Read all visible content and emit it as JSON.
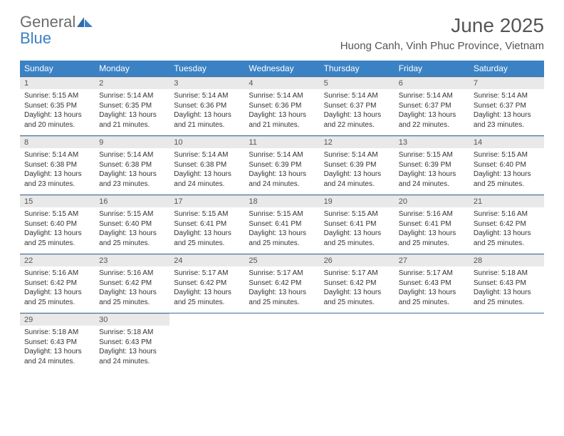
{
  "logo": {
    "word1": "General",
    "word2": "Blue"
  },
  "title": "June 2025",
  "subtitle": "Huong Canh, Vinh Phuc Province, Vietnam",
  "day_headers": [
    "Sunday",
    "Monday",
    "Tuesday",
    "Wednesday",
    "Thursday",
    "Friday",
    "Saturday"
  ],
  "colors": {
    "header_bg": "#3b82c4",
    "header_fg": "#ffffff",
    "daynum_bg": "#e9e9e9",
    "row_border": "#3b6fa0",
    "title_color": "#555555",
    "logo_gray": "#6b6b6b",
    "logo_blue": "#3b7fc4"
  },
  "labels": {
    "sunrise": "Sunrise:",
    "sunset": "Sunset:",
    "daylight": "Daylight:"
  },
  "days": [
    {
      "n": "1",
      "sunrise": "5:15 AM",
      "sunset": "6:35 PM",
      "daylight": "13 hours and 20 minutes."
    },
    {
      "n": "2",
      "sunrise": "5:14 AM",
      "sunset": "6:35 PM",
      "daylight": "13 hours and 21 minutes."
    },
    {
      "n": "3",
      "sunrise": "5:14 AM",
      "sunset": "6:36 PM",
      "daylight": "13 hours and 21 minutes."
    },
    {
      "n": "4",
      "sunrise": "5:14 AM",
      "sunset": "6:36 PM",
      "daylight": "13 hours and 21 minutes."
    },
    {
      "n": "5",
      "sunrise": "5:14 AM",
      "sunset": "6:37 PM",
      "daylight": "13 hours and 22 minutes."
    },
    {
      "n": "6",
      "sunrise": "5:14 AM",
      "sunset": "6:37 PM",
      "daylight": "13 hours and 22 minutes."
    },
    {
      "n": "7",
      "sunrise": "5:14 AM",
      "sunset": "6:37 PM",
      "daylight": "13 hours and 23 minutes."
    },
    {
      "n": "8",
      "sunrise": "5:14 AM",
      "sunset": "6:38 PM",
      "daylight": "13 hours and 23 minutes."
    },
    {
      "n": "9",
      "sunrise": "5:14 AM",
      "sunset": "6:38 PM",
      "daylight": "13 hours and 23 minutes."
    },
    {
      "n": "10",
      "sunrise": "5:14 AM",
      "sunset": "6:38 PM",
      "daylight": "13 hours and 24 minutes."
    },
    {
      "n": "11",
      "sunrise": "5:14 AM",
      "sunset": "6:39 PM",
      "daylight": "13 hours and 24 minutes."
    },
    {
      "n": "12",
      "sunrise": "5:14 AM",
      "sunset": "6:39 PM",
      "daylight": "13 hours and 24 minutes."
    },
    {
      "n": "13",
      "sunrise": "5:15 AM",
      "sunset": "6:39 PM",
      "daylight": "13 hours and 24 minutes."
    },
    {
      "n": "14",
      "sunrise": "5:15 AM",
      "sunset": "6:40 PM",
      "daylight": "13 hours and 25 minutes."
    },
    {
      "n": "15",
      "sunrise": "5:15 AM",
      "sunset": "6:40 PM",
      "daylight": "13 hours and 25 minutes."
    },
    {
      "n": "16",
      "sunrise": "5:15 AM",
      "sunset": "6:40 PM",
      "daylight": "13 hours and 25 minutes."
    },
    {
      "n": "17",
      "sunrise": "5:15 AM",
      "sunset": "6:41 PM",
      "daylight": "13 hours and 25 minutes."
    },
    {
      "n": "18",
      "sunrise": "5:15 AM",
      "sunset": "6:41 PM",
      "daylight": "13 hours and 25 minutes."
    },
    {
      "n": "19",
      "sunrise": "5:15 AM",
      "sunset": "6:41 PM",
      "daylight": "13 hours and 25 minutes."
    },
    {
      "n": "20",
      "sunrise": "5:16 AM",
      "sunset": "6:41 PM",
      "daylight": "13 hours and 25 minutes."
    },
    {
      "n": "21",
      "sunrise": "5:16 AM",
      "sunset": "6:42 PM",
      "daylight": "13 hours and 25 minutes."
    },
    {
      "n": "22",
      "sunrise": "5:16 AM",
      "sunset": "6:42 PM",
      "daylight": "13 hours and 25 minutes."
    },
    {
      "n": "23",
      "sunrise": "5:16 AM",
      "sunset": "6:42 PM",
      "daylight": "13 hours and 25 minutes."
    },
    {
      "n": "24",
      "sunrise": "5:17 AM",
      "sunset": "6:42 PM",
      "daylight": "13 hours and 25 minutes."
    },
    {
      "n": "25",
      "sunrise": "5:17 AM",
      "sunset": "6:42 PM",
      "daylight": "13 hours and 25 minutes."
    },
    {
      "n": "26",
      "sunrise": "5:17 AM",
      "sunset": "6:42 PM",
      "daylight": "13 hours and 25 minutes."
    },
    {
      "n": "27",
      "sunrise": "5:17 AM",
      "sunset": "6:43 PM",
      "daylight": "13 hours and 25 minutes."
    },
    {
      "n": "28",
      "sunrise": "5:18 AM",
      "sunset": "6:43 PM",
      "daylight": "13 hours and 25 minutes."
    },
    {
      "n": "29",
      "sunrise": "5:18 AM",
      "sunset": "6:43 PM",
      "daylight": "13 hours and 24 minutes."
    },
    {
      "n": "30",
      "sunrise": "5:18 AM",
      "sunset": "6:43 PM",
      "daylight": "13 hours and 24 minutes."
    }
  ],
  "start_weekday": 0
}
